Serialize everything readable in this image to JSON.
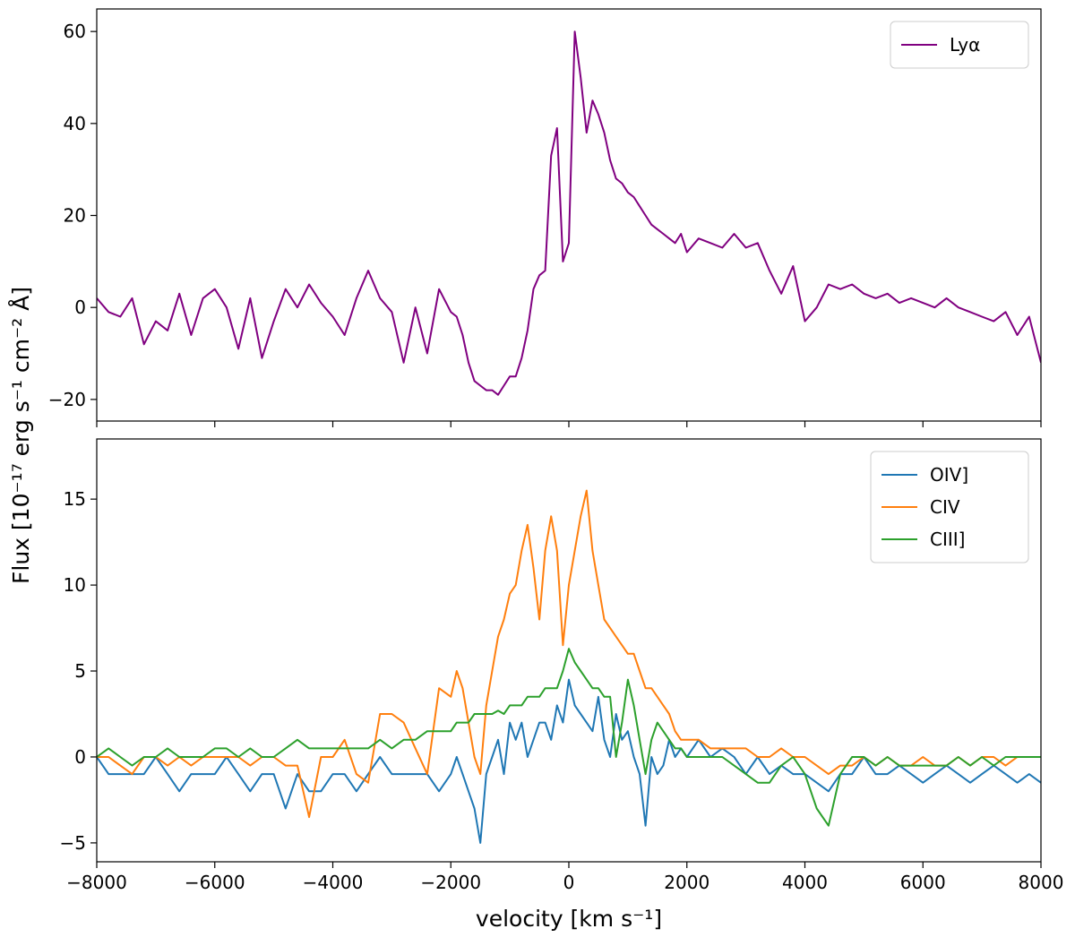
{
  "chart_data": [
    {
      "type": "line",
      "ylabel": "Flux [10⁻¹⁷ erg s⁻¹ cm⁻² Å]",
      "x": [
        -8000,
        -7800,
        -7600,
        -7400,
        -7200,
        -7000,
        -6800,
        -6600,
        -6400,
        -6200,
        -6000,
        -5800,
        -5600,
        -5400,
        -5200,
        -5000,
        -4800,
        -4600,
        -4400,
        -4200,
        -4000,
        -3800,
        -3600,
        -3400,
        -3200,
        -3000,
        -2800,
        -2600,
        -2400,
        -2200,
        -2000,
        -1900,
        -1800,
        -1700,
        -1600,
        -1500,
        -1400,
        -1300,
        -1200,
        -1100,
        -1000,
        -900,
        -800,
        -700,
        -600,
        -500,
        -400,
        -300,
        -200,
        -100,
        0,
        100,
        200,
        300,
        400,
        500,
        600,
        700,
        800,
        900,
        1000,
        1100,
        1200,
        1300,
        1400,
        1500,
        1600,
        1700,
        1800,
        1900,
        2000,
        2200,
        2400,
        2600,
        2800,
        3000,
        3200,
        3400,
        3600,
        3800,
        4000,
        4200,
        4400,
        4600,
        4800,
        5000,
        5200,
        5400,
        5600,
        5800,
        6000,
        6200,
        6400,
        6600,
        6800,
        7000,
        7200,
        7400,
        7600,
        7800,
        8000
      ],
      "series": [
        {
          "name": "Lyα",
          "color": "#800080",
          "values": [
            2,
            -1,
            -2,
            2,
            -8,
            -3,
            -5,
            3,
            -6,
            2,
            4,
            0,
            -9,
            2,
            -11,
            -3,
            4,
            0,
            5,
            1,
            -2,
            -6,
            2,
            8,
            2,
            -1,
            -12,
            0,
            -10,
            4,
            -1,
            -2,
            -6,
            -12,
            -16,
            -17,
            -18,
            -18,
            -19,
            -17,
            -15,
            -15,
            -11,
            -5,
            4,
            7,
            8,
            33,
            39,
            10,
            14,
            60,
            50,
            38,
            45,
            42,
            38,
            32,
            28,
            27,
            25,
            24,
            22,
            20,
            18,
            17,
            16,
            15,
            14,
            16,
            12,
            15,
            14,
            13,
            16,
            13,
            14,
            8,
            3,
            9,
            -3,
            0,
            5,
            4,
            5,
            3,
            2,
            3,
            1,
            2,
            1,
            0,
            2,
            0,
            -1,
            -2,
            -3,
            -1,
            -6,
            -2,
            -12
          ]
        }
      ],
      "xlim": [
        -8000,
        8000
      ],
      "xticks": [
        {
          "value": -8000,
          "label": "−8000"
        },
        {
          "value": -6000,
          "label": "−6000"
        },
        {
          "value": -4000,
          "label": "−4000"
        },
        {
          "value": -2000,
          "label": "−2000"
        },
        0,
        2000,
        4000,
        6000,
        8000
      ],
      "show_xtick_labels": false,
      "ylim": [
        -24.7,
        64.9
      ],
      "yticks": [
        {
          "value": -20,
          "label": "−20"
        },
        0,
        20,
        40,
        60
      ],
      "legend": "upper right"
    },
    {
      "type": "line",
      "xlabel": "velocity [km s⁻¹]",
      "x": [
        -8000,
        -7800,
        -7600,
        -7400,
        -7200,
        -7000,
        -6800,
        -6600,
        -6400,
        -6200,
        -6000,
        -5800,
        -5600,
        -5400,
        -5200,
        -5000,
        -4800,
        -4600,
        -4400,
        -4200,
        -4000,
        -3800,
        -3600,
        -3400,
        -3200,
        -3000,
        -2800,
        -2600,
        -2400,
        -2200,
        -2000,
        -1900,
        -1800,
        -1700,
        -1600,
        -1500,
        -1400,
        -1300,
        -1200,
        -1100,
        -1000,
        -900,
        -800,
        -700,
        -600,
        -500,
        -400,
        -300,
        -200,
        -100,
        0,
        100,
        200,
        300,
        400,
        500,
        600,
        700,
        800,
        900,
        1000,
        1100,
        1200,
        1300,
        1400,
        1500,
        1600,
        1700,
        1800,
        1900,
        2000,
        2200,
        2400,
        2600,
        2800,
        3000,
        3200,
        3400,
        3600,
        3800,
        4000,
        4200,
        4400,
        4600,
        4800,
        5000,
        5200,
        5400,
        5600,
        5800,
        6000,
        6200,
        6400,
        6600,
        6800,
        7000,
        7200,
        7400,
        7600,
        7800,
        8000
      ],
      "series": [
        {
          "name": "OIV]",
          "color": "#1f77b4",
          "values": [
            0,
            -1,
            -1,
            -1,
            -1,
            0,
            -1,
            -2,
            -1,
            -1,
            -1,
            0,
            -1,
            -2,
            -1,
            -1,
            -3,
            -1,
            -2,
            -2,
            -1,
            -1,
            -2,
            -1,
            0,
            -1,
            -1,
            -1,
            -1,
            -2,
            -1,
            0,
            -1,
            -2,
            -3,
            -5,
            -1,
            0,
            1,
            -1,
            2,
            1,
            2,
            0,
            1,
            2,
            2,
            1,
            3,
            2,
            4.5,
            3,
            2.5,
            2,
            1.5,
            3.5,
            1,
            0,
            2.5,
            1,
            1.5,
            0,
            -1,
            -4,
            0,
            -1,
            -0.5,
            1,
            0,
            0.5,
            0,
            1,
            0,
            0.5,
            0,
            -1,
            0,
            -1,
            -0.5,
            -1,
            -1,
            -1.5,
            -2,
            -1,
            -1,
            0,
            -1,
            -1,
            -0.5,
            -1,
            -1.5,
            -1,
            -0.5,
            -1,
            -1.5,
            -1,
            -0.5,
            -1,
            -1.5,
            -1,
            -1.5
          ]
        },
        {
          "name": "CIV",
          "color": "#ff7f0e",
          "values": [
            0,
            0,
            -0.5,
            -1,
            0,
            0,
            -0.5,
            0,
            -0.5,
            0,
            0,
            0,
            0,
            -0.5,
            0,
            0,
            -0.5,
            -0.5,
            -3.5,
            0,
            0,
            1,
            -1,
            -1.5,
            2.5,
            2.5,
            2,
            0.5,
            -1,
            4,
            3.5,
            5,
            4,
            2,
            0,
            -1,
            3,
            5,
            7,
            8,
            9.5,
            10,
            12,
            13.5,
            11,
            8,
            12,
            14,
            12,
            6.5,
            10,
            12,
            14,
            15.5,
            12,
            10,
            8,
            7.5,
            7,
            6.5,
            6,
            6,
            5,
            4,
            4,
            3.5,
            3,
            2.5,
            1.5,
            1,
            1,
            1,
            0.5,
            0.5,
            0.5,
            0.5,
            0,
            0,
            0.5,
            0,
            0,
            -0.5,
            -1,
            -0.5,
            -0.5,
            0,
            -0.5,
            0,
            -0.5,
            -0.5,
            0,
            -0.5,
            -0.5,
            0,
            -0.5,
            0,
            0,
            -0.5,
            0,
            0,
            0
          ]
        },
        {
          "name": "CIII]",
          "color": "#2ca02c",
          "values": [
            0,
            0.5,
            0,
            -0.5,
            0,
            0,
            0.5,
            0,
            0,
            0,
            0.5,
            0.5,
            0,
            0.5,
            0,
            0,
            0.5,
            1,
            0.5,
            0.5,
            0.5,
            0.5,
            0.5,
            0.5,
            1,
            0.5,
            1,
            1,
            1.5,
            1.5,
            1.5,
            2,
            2,
            2,
            2.5,
            2.5,
            2.5,
            2.5,
            2.7,
            2.5,
            3,
            3,
            3,
            3.5,
            3.5,
            3.5,
            4,
            4,
            4,
            5,
            6.3,
            5.5,
            5,
            4.5,
            4,
            4,
            3.5,
            3.5,
            0,
            2,
            4.5,
            3,
            1,
            -1,
            1,
            2,
            1.5,
            1,
            0.5,
            0.5,
            0,
            0,
            0,
            0,
            -0.5,
            -1,
            -1.5,
            -1.5,
            -0.5,
            0,
            -1,
            -3,
            -4,
            -1,
            0,
            0,
            -0.5,
            0,
            -0.5,
            -0.5,
            -0.5,
            -0.5,
            -0.5,
            0,
            -0.5,
            0,
            -0.5,
            0,
            0,
            0,
            0
          ]
        }
      ],
      "xlim": [
        -8000,
        8000
      ],
      "xticks": [
        {
          "value": -8000,
          "label": "−8000"
        },
        {
          "value": -6000,
          "label": "−6000"
        },
        {
          "value": -4000,
          "label": "−4000"
        },
        {
          "value": -2000,
          "label": "−2000"
        },
        0,
        2000,
        4000,
        6000,
        8000
      ],
      "show_xtick_labels": true,
      "ylim": [
        -6.1,
        18.5
      ],
      "yticks": [
        {
          "value": -5,
          "label": "−5"
        },
        0,
        5,
        10,
        15
      ],
      "legend": "upper right"
    }
  ]
}
